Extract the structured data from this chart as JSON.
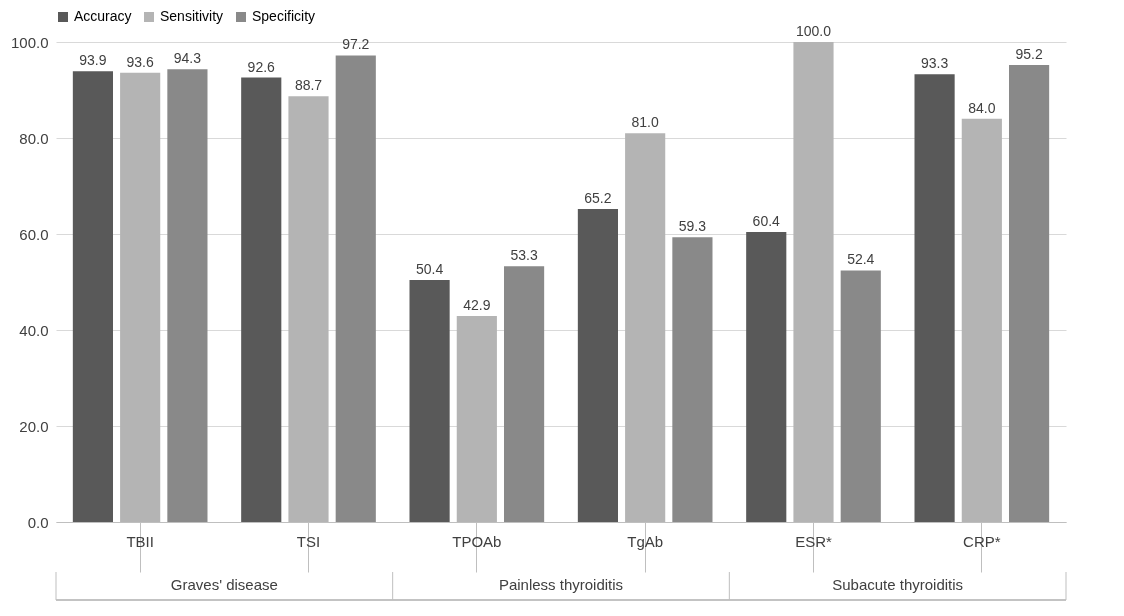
{
  "chart_data": {
    "type": "bar",
    "categories": [
      "TBII",
      "TSI",
      "TPOAb",
      "TgAb",
      "ESR*",
      "CRP*"
    ],
    "series": [
      {
        "name": "Accuracy",
        "color": "#595959",
        "values": [
          93.9,
          92.6,
          50.4,
          65.2,
          60.4,
          93.3
        ],
        "value_labels": [
          "93.9",
          "92.6",
          "50.4",
          "65.2",
          "60.4",
          "93.3"
        ]
      },
      {
        "name": "Sensitivity",
        "color": "#b4b4b4",
        "values": [
          93.6,
          88.7,
          42.9,
          81.0,
          100.0,
          84.0
        ],
        "value_labels": [
          "93.6",
          "88.7",
          "42.9",
          "81.0",
          "100.0",
          "84.0"
        ]
      },
      {
        "name": "Specificity",
        "color": "#898989",
        "values": [
          94.3,
          97.2,
          53.3,
          59.3,
          52.4,
          95.2
        ],
        "value_labels": [
          "94.3",
          "97.2",
          "53.3",
          "59.3",
          "52.4",
          "95.2"
        ]
      }
    ],
    "annotations": [
      "Graves' disease",
      "Painless thyroiditis",
      "Subacute thyroiditis"
    ],
    "ylim": [
      0,
      100
    ],
    "yticks": [
      {
        "value": 0,
        "label": "0.0"
      },
      {
        "value": 20,
        "label": "20.0"
      },
      {
        "value": 40,
        "label": "40.0"
      },
      {
        "value": 60,
        "label": "60.0"
      },
      {
        "value": 80,
        "label": "80.0"
      },
      {
        "value": 100,
        "label": "100.0"
      }
    ],
    "grid": "y",
    "legend": "top"
  }
}
